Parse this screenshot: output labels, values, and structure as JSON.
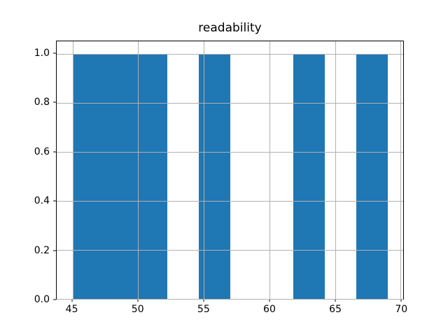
{
  "chart_data": {
    "type": "bar",
    "subtype": "histogram",
    "title": "readability",
    "xlabel": "",
    "ylabel": "",
    "bin_edges": [
      45.0,
      47.4,
      49.8,
      52.2,
      54.6,
      57.0,
      59.4,
      61.8,
      64.2,
      66.6,
      69.0
    ],
    "counts": [
      1,
      1,
      1,
      0,
      1,
      0,
      0,
      1,
      0,
      1
    ],
    "xlim": [
      43.8,
      70.2
    ],
    "ylim": [
      0,
      1.05
    ],
    "xticks": [
      45,
      50,
      55,
      60,
      65,
      70
    ],
    "xtick_labels": [
      "45",
      "50",
      "55",
      "60",
      "65",
      "70"
    ],
    "yticks": [
      0.0,
      0.2,
      0.4,
      0.6,
      0.8,
      1.0
    ],
    "ytick_labels": [
      "0.0",
      "0.2",
      "0.4",
      "0.6",
      "0.8",
      "1.0"
    ],
    "grid": true,
    "grid_above_bars": true,
    "legend": null,
    "bar_color": "#1f77b4",
    "grid_color": "#b0b0b0",
    "axis_color": "#000000",
    "background_color": "#ffffff"
  }
}
